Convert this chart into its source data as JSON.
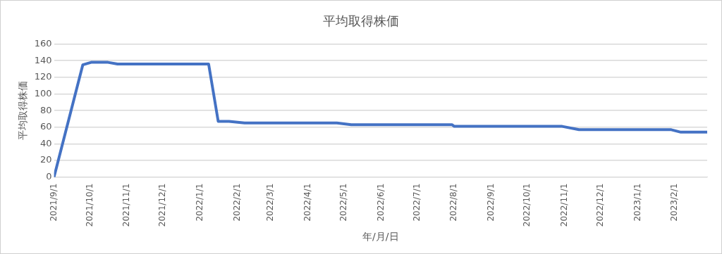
{
  "chart_data": {
    "type": "line",
    "title": "平均取得株価",
    "xlabel": "年/月/日",
    "ylabel": "平均取得株価",
    "x": [
      "2021-09-01",
      "2021-09-25",
      "2021-10-02",
      "2021-10-16",
      "2021-10-24",
      "2022-01-08",
      "2022-01-16",
      "2022-01-25",
      "2022-02-07",
      "2022-04-25",
      "2022-05-07",
      "2022-07-30",
      "2022-08-01",
      "2022-10-30",
      "2022-11-13",
      "2023-01-29",
      "2023-02-06",
      "2023-02-28"
    ],
    "series": [
      {
        "color": "#4472c4",
        "values": [
          0,
          135,
          138,
          138,
          136,
          136,
          67,
          67,
          65,
          65,
          63,
          63,
          61,
          61,
          57,
          57,
          54,
          54
        ]
      }
    ],
    "xlim": [
      "2021-09-01",
      "2023-02-28"
    ],
    "xticks": [
      {
        "value": "2021-09-01",
        "label": "2021/9/1"
      },
      {
        "value": "2021-10-01",
        "label": "2021/10/1"
      },
      {
        "value": "2021-11-01",
        "label": "2021/11/1"
      },
      {
        "value": "2021-12-01",
        "label": "2021/12/1"
      },
      {
        "value": "2022-01-01",
        "label": "2022/1/1"
      },
      {
        "value": "2022-02-01",
        "label": "2022/2/1"
      },
      {
        "value": "2022-03-01",
        "label": "2022/3/1"
      },
      {
        "value": "2022-04-01",
        "label": "2022/4/1"
      },
      {
        "value": "2022-05-01",
        "label": "2022/5/1"
      },
      {
        "value": "2022-06-01",
        "label": "2022/6/1"
      },
      {
        "value": "2022-07-01",
        "label": "2022/7/1"
      },
      {
        "value": "2022-08-01",
        "label": "2022/8/1"
      },
      {
        "value": "2022-09-01",
        "label": "2022/9/1"
      },
      {
        "value": "2022-10-01",
        "label": "2022/10/1"
      },
      {
        "value": "2022-11-01",
        "label": "2022/11/1"
      },
      {
        "value": "2022-12-01",
        "label": "2022/12/1"
      },
      {
        "value": "2023-01-01",
        "label": "2023/1/1"
      },
      {
        "value": "2023-02-01",
        "label": "2023/2/1"
      }
    ],
    "ylim": [
      0,
      160
    ],
    "yticks": [
      0,
      20,
      40,
      60,
      80,
      100,
      120,
      140,
      160
    ],
    "grid": "y",
    "legend": false,
    "marker": "none",
    "line_style": "solid"
  }
}
